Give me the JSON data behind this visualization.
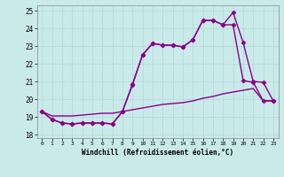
{
  "xlabel": "Windchill (Refroidissement éolien,°C)",
  "background_color": "#caeaea",
  "grid_color": "#b0d8d8",
  "line_color": "#880088",
  "xlim": [
    -0.5,
    23.5
  ],
  "ylim": [
    17.8,
    25.3
  ],
  "yticks": [
    18,
    19,
    20,
    21,
    22,
    23,
    24,
    25
  ],
  "xticks": [
    0,
    1,
    2,
    3,
    4,
    5,
    6,
    7,
    8,
    9,
    10,
    11,
    12,
    13,
    14,
    15,
    16,
    17,
    18,
    19,
    20,
    21,
    22,
    23
  ],
  "series1_x": [
    0,
    1,
    2,
    3,
    4,
    5,
    6,
    7,
    8,
    9,
    10,
    11,
    12,
    13,
    14,
    15,
    16,
    17,
    18,
    19,
    20,
    21,
    22,
    23
  ],
  "series1_y": [
    19.3,
    18.85,
    18.65,
    18.6,
    18.65,
    18.65,
    18.65,
    18.6,
    19.3,
    20.8,
    22.5,
    23.15,
    23.05,
    23.05,
    22.95,
    23.35,
    24.45,
    24.45,
    24.2,
    24.9,
    23.2,
    21.0,
    20.95,
    19.9
  ],
  "series2_x": [
    0,
    1,
    2,
    3,
    4,
    5,
    6,
    7,
    8,
    9,
    10,
    11,
    12,
    13,
    14,
    15,
    16,
    17,
    18,
    19,
    20,
    21,
    22,
    23
  ],
  "series2_y": [
    19.3,
    18.85,
    18.65,
    18.6,
    18.65,
    18.65,
    18.65,
    18.6,
    19.3,
    20.85,
    22.5,
    23.15,
    23.05,
    23.05,
    22.95,
    23.35,
    24.45,
    24.45,
    24.2,
    24.2,
    21.05,
    20.95,
    19.9,
    19.9
  ],
  "series3_x": [
    0,
    1,
    2,
    3,
    4,
    5,
    6,
    7,
    8,
    9,
    10,
    11,
    12,
    13,
    14,
    15,
    16,
    17,
    18,
    19,
    20,
    21,
    22,
    23
  ],
  "series3_y": [
    19.3,
    19.05,
    19.05,
    19.05,
    19.1,
    19.15,
    19.2,
    19.2,
    19.3,
    19.4,
    19.5,
    19.6,
    19.7,
    19.75,
    19.8,
    19.9,
    20.05,
    20.15,
    20.3,
    20.4,
    20.5,
    20.6,
    19.9,
    19.9
  ],
  "marker": "D",
  "marker_series1": true,
  "marker_series2": true,
  "marker_series3": false,
  "markersize": 2.5,
  "linewidth": 1.0
}
